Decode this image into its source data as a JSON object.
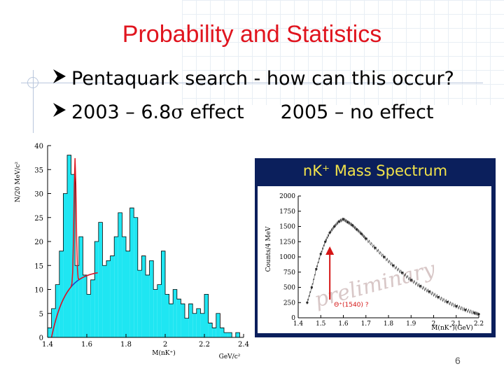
{
  "slide": {
    "title": "Probability and Statistics",
    "bullets": [
      {
        "text": "Pentaquark search - how can this occur?"
      },
      {
        "text_left": "2003 – 6.8",
        "sigma": "σ",
        "text_mid": " effect",
        "text_right": "2005 – no effect"
      }
    ],
    "page_number": "6"
  },
  "left_plot": {
    "ylabel": "N/20 MeV/c²",
    "xlabel": "M(nK⁺)",
    "xunit": "GeV/c²",
    "xticks": [
      "1.4",
      "1.6",
      "1.8",
      "2",
      "2.2",
      "2.4"
    ],
    "yticks": [
      "0",
      "5",
      "10",
      "15",
      "20",
      "25",
      "30",
      "35",
      "40"
    ]
  },
  "right_plot": {
    "title": "nK⁺ Mass Spectrum",
    "ylabel": "Counts/4 MeV",
    "xlabel": "M(nK⁺)(GeV)",
    "xticks": [
      "1.4",
      "1.5",
      "1.6",
      "1.7",
      "1.8",
      "1.9",
      "2",
      "2.1",
      "2.2"
    ],
    "yticks": [
      "0",
      "250",
      "500",
      "750",
      "1000",
      "1250",
      "1500",
      "1750",
      "2000"
    ],
    "watermark": "preliminary",
    "annotation": "Θ⁺(1540) ?"
  },
  "chart_data": [
    {
      "type": "bar",
      "xlabel": "M(nK⁺)",
      "ylabel": "N/20 MeV/c²",
      "xlim": [
        1.4,
        2.4
      ],
      "ylim": [
        0,
        40
      ],
      "x": [
        1.41,
        1.43,
        1.45,
        1.47,
        1.49,
        1.51,
        1.53,
        1.55,
        1.57,
        1.59,
        1.61,
        1.63,
        1.65,
        1.67,
        1.69,
        1.71,
        1.73,
        1.75,
        1.77,
        1.79,
        1.81,
        1.83,
        1.85,
        1.87,
        1.89,
        1.91,
        1.93,
        1.95,
        1.97,
        1.99,
        2.01,
        2.03,
        2.05,
        2.07,
        2.09,
        2.11,
        2.13,
        2.15,
        2.17,
        2.19,
        2.21,
        2.23,
        2.25,
        2.27,
        2.29,
        2.31,
        2.33,
        2.35,
        2.37,
        2.39
      ],
      "values": [
        2,
        6,
        11,
        18,
        30,
        38,
        34,
        15,
        21,
        13,
        9,
        12,
        20,
        24,
        15,
        16,
        17,
        21,
        26,
        21,
        18,
        27,
        25,
        14,
        17,
        13,
        16,
        10,
        11,
        18,
        9,
        7,
        10,
        8,
        7,
        4,
        7,
        5,
        6,
        5,
        9,
        3,
        2,
        5,
        2,
        1,
        1,
        0,
        1,
        0
      ],
      "fit_peak": 1.54
    },
    {
      "type": "scatter",
      "title": "nK⁺ Mass Spectrum",
      "xlabel": "M(nK⁺)(GeV)",
      "ylabel": "Counts/4 MeV",
      "xlim": [
        1.4,
        2.2
      ],
      "ylim": [
        0,
        2000
      ],
      "x": [
        1.44,
        1.46,
        1.48,
        1.5,
        1.52,
        1.54,
        1.56,
        1.58,
        1.6,
        1.62,
        1.64,
        1.66,
        1.68,
        1.7,
        1.74,
        1.78,
        1.82,
        1.86,
        1.9,
        1.94,
        1.98,
        2.02,
        2.06,
        2.1,
        2.14,
        2.18,
        2.2
      ],
      "values": [
        250,
        500,
        800,
        1050,
        1250,
        1400,
        1500,
        1580,
        1620,
        1570,
        1520,
        1450,
        1380,
        1300,
        1150,
        1000,
        860,
        740,
        620,
        520,
        430,
        340,
        260,
        190,
        130,
        80,
        60
      ],
      "annotation_x": 1.54
    }
  ]
}
